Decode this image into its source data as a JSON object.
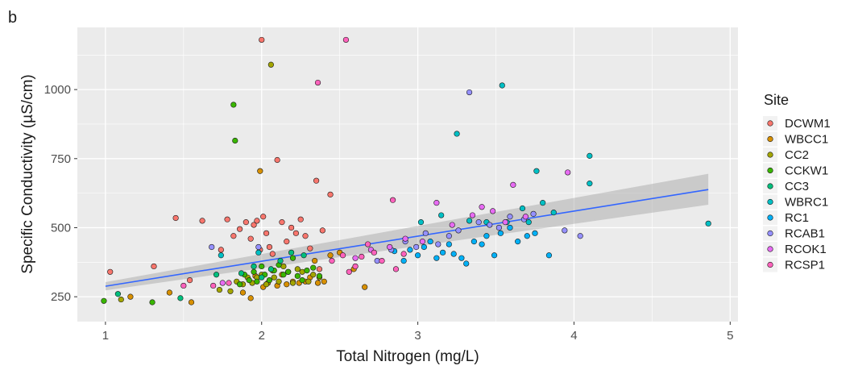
{
  "panel_tag": "b",
  "chart_data": {
    "type": "scatter",
    "title": "",
    "xlabel": "Total Nitrogen (mg/L)",
    "ylabel": "Specific Conductivity (µS/cm)",
    "xlim": [
      0.82,
      5.05
    ],
    "ylim": [
      160,
      1225
    ],
    "x_ticks": [
      1,
      2,
      3,
      4,
      5
    ],
    "y_ticks": [
      250,
      500,
      750,
      1000
    ],
    "x_tick_labels": [
      "1",
      "2",
      "3",
      "4",
      "5"
    ],
    "y_tick_labels": [
      "250",
      "500",
      "750",
      "1000"
    ],
    "grid": true,
    "legend": {
      "title": "Site",
      "placement": "right",
      "entries": [
        "DCWM1",
        "WBCC1",
        "CC2",
        "CCKW1",
        "CC3",
        "WBRC1",
        "RC1",
        "RCAB1",
        "RCOK1",
        "RCSP1"
      ]
    },
    "colors": {
      "DCWM1": "#F8766D",
      "WBCC1": "#D89000",
      "CC2": "#A3A500",
      "CCKW1": "#39B600",
      "CC3": "#00BF7D",
      "WBRC1": "#00BFC4",
      "RC1": "#00B0F6",
      "RCAB1": "#9590FF",
      "RCOK1": "#E76BF3",
      "RCSP1": "#FF62BC",
      "trend_line": "#3366FF",
      "panel_bg": "#EBEBEB"
    },
    "trend": {
      "x0": 1.0,
      "y0": 288,
      "x1": 4.86,
      "y1": 638,
      "ci_start": [
        273,
        303
      ],
      "ci_end": [
        583,
        695
      ]
    },
    "series": [
      {
        "name": "DCWM1",
        "points": [
          [
            1.03,
            340
          ],
          [
            1.31,
            360
          ],
          [
            1.45,
            535
          ],
          [
            1.54,
            310
          ],
          [
            1.62,
            525
          ],
          [
            1.74,
            420
          ],
          [
            1.78,
            530
          ],
          [
            1.82,
            470
          ],
          [
            1.86,
            495
          ],
          [
            1.9,
            520
          ],
          [
            1.93,
            460
          ],
          [
            1.95,
            510
          ],
          [
            1.97,
            525
          ],
          [
            1.99,
            420
          ],
          [
            2.0,
            1180
          ],
          [
            2.01,
            540
          ],
          [
            2.03,
            480
          ],
          [
            2.05,
            430
          ],
          [
            2.07,
            405
          ],
          [
            2.1,
            745
          ],
          [
            2.13,
            520
          ],
          [
            2.16,
            450
          ],
          [
            2.19,
            500
          ],
          [
            2.22,
            480
          ],
          [
            2.25,
            530
          ],
          [
            2.28,
            470
          ],
          [
            2.31,
            425
          ],
          [
            2.35,
            670
          ],
          [
            2.37,
            350
          ],
          [
            2.39,
            490
          ],
          [
            2.44,
            620
          ]
        ]
      },
      {
        "name": "WBCC1",
        "points": [
          [
            1.16,
            250
          ],
          [
            1.41,
            265
          ],
          [
            1.55,
            230
          ],
          [
            1.88,
            265
          ],
          [
            1.93,
            245
          ],
          [
            1.96,
            325
          ],
          [
            1.99,
            705
          ],
          [
            2.01,
            285
          ],
          [
            2.04,
            300
          ],
          [
            2.07,
            345
          ],
          [
            2.1,
            290
          ],
          [
            2.13,
            330
          ],
          [
            2.16,
            295
          ],
          [
            2.2,
            305
          ],
          [
            2.24,
            300
          ],
          [
            2.28,
            305
          ],
          [
            2.31,
            320
          ],
          [
            2.34,
            380
          ],
          [
            2.36,
            300
          ],
          [
            2.4,
            305
          ],
          [
            2.44,
            400
          ],
          [
            2.5,
            410
          ],
          [
            2.59,
            350
          ],
          [
            2.66,
            285
          ]
        ]
      },
      {
        "name": "CC2",
        "points": [
          [
            1.1,
            240
          ],
          [
            1.73,
            275
          ],
          [
            1.8,
            270
          ],
          [
            1.84,
            305
          ],
          [
            1.88,
            295
          ],
          [
            1.91,
            320
          ],
          [
            1.94,
            300
          ],
          [
            1.97,
            320
          ],
          [
            2.0,
            330
          ],
          [
            2.03,
            295
          ],
          [
            2.06,
            1090
          ],
          [
            2.08,
            320
          ],
          [
            2.11,
            305
          ],
          [
            2.14,
            360
          ],
          [
            2.17,
            340
          ],
          [
            2.2,
            300
          ],
          [
            2.23,
            350
          ],
          [
            2.26,
            340
          ],
          [
            2.3,
            305
          ],
          [
            2.33,
            330
          ],
          [
            2.37,
            320
          ]
        ]
      },
      {
        "name": "CCKW1",
        "points": [
          [
            0.99,
            235
          ],
          [
            1.3,
            230
          ],
          [
            1.82,
            945
          ],
          [
            1.83,
            815
          ],
          [
            1.86,
            295
          ],
          [
            1.89,
            330
          ],
          [
            1.92,
            310
          ],
          [
            1.95,
            340
          ],
          [
            1.97,
            305
          ],
          [
            2.0,
            360
          ],
          [
            2.02,
            330
          ],
          [
            2.05,
            310
          ],
          [
            2.08,
            345
          ],
          [
            2.11,
            365
          ],
          [
            2.14,
            330
          ],
          [
            2.17,
            340
          ],
          [
            2.2,
            390
          ],
          [
            2.23,
            325
          ],
          [
            2.26,
            310
          ],
          [
            2.29,
            345
          ],
          [
            2.33,
            355
          ],
          [
            2.37,
            325
          ]
        ]
      },
      {
        "name": "CC3",
        "points": [
          [
            1.08,
            260
          ],
          [
            1.48,
            245
          ],
          [
            1.71,
            330
          ],
          [
            1.87,
            335
          ],
          [
            1.95,
            360
          ],
          [
            2.0,
            320
          ],
          [
            2.06,
            350
          ],
          [
            2.12,
            380
          ],
          [
            2.19,
            410
          ],
          [
            2.27,
            400
          ]
        ]
      },
      {
        "name": "WBRC1",
        "points": [
          [
            1.74,
            400
          ],
          [
            1.98,
            410
          ],
          [
            3.02,
            520
          ],
          [
            3.15,
            545
          ],
          [
            3.25,
            840
          ],
          [
            3.33,
            525
          ],
          [
            3.44,
            520
          ],
          [
            3.54,
            1015
          ],
          [
            3.57,
            520
          ],
          [
            3.67,
            570
          ],
          [
            3.71,
            520
          ],
          [
            3.76,
            705
          ],
          [
            3.8,
            590
          ],
          [
            3.87,
            555
          ],
          [
            4.1,
            760
          ],
          [
            4.1,
            660
          ],
          [
            4.86,
            515
          ]
        ]
      },
      {
        "name": "RC1",
        "points": [
          [
            2.85,
            415
          ],
          [
            2.91,
            380
          ],
          [
            2.95,
            420
          ],
          [
            3.0,
            400
          ],
          [
            3.04,
            430
          ],
          [
            3.08,
            450
          ],
          [
            3.12,
            390
          ],
          [
            3.16,
            410
          ],
          [
            3.2,
            440
          ],
          [
            3.23,
            405
          ],
          [
            3.28,
            390
          ],
          [
            3.31,
            370
          ],
          [
            3.36,
            450
          ],
          [
            3.41,
            440
          ],
          [
            3.44,
            470
          ],
          [
            3.49,
            400
          ],
          [
            3.53,
            480
          ],
          [
            3.59,
            500
          ],
          [
            3.64,
            450
          ],
          [
            3.7,
            470
          ],
          [
            3.75,
            480
          ],
          [
            3.84,
            400
          ]
        ]
      },
      {
        "name": "RCAB1",
        "points": [
          [
            1.68,
            430
          ],
          [
            1.98,
            430
          ],
          [
            2.74,
            380
          ],
          [
            2.83,
            420
          ],
          [
            2.92,
            450
          ],
          [
            2.99,
            430
          ],
          [
            3.05,
            480
          ],
          [
            3.13,
            440
          ],
          [
            3.2,
            470
          ],
          [
            3.26,
            490
          ],
          [
            3.33,
            990
          ],
          [
            3.39,
            520
          ],
          [
            3.46,
            510
          ],
          [
            3.52,
            500
          ],
          [
            3.59,
            540
          ],
          [
            3.68,
            530
          ],
          [
            3.74,
            550
          ],
          [
            3.94,
            490
          ],
          [
            4.04,
            470
          ]
        ]
      },
      {
        "name": "RCOK1",
        "points": [
          [
            1.75,
            300
          ],
          [
            2.6,
            390
          ],
          [
            2.7,
            420
          ],
          [
            2.82,
            430
          ],
          [
            2.92,
            460
          ],
          [
            3.03,
            450
          ],
          [
            3.12,
            590
          ],
          [
            3.22,
            510
          ],
          [
            3.35,
            545
          ],
          [
            3.41,
            575
          ],
          [
            3.48,
            560
          ],
          [
            3.56,
            520
          ],
          [
            3.61,
            655
          ],
          [
            3.69,
            540
          ],
          [
            3.96,
            700
          ]
        ]
      },
      {
        "name": "RCSP1",
        "points": [
          [
            1.5,
            290
          ],
          [
            1.69,
            290
          ],
          [
            1.79,
            300
          ],
          [
            2.36,
            1025
          ],
          [
            2.45,
            380
          ],
          [
            2.52,
            400
          ],
          [
            2.54,
            1180
          ],
          [
            2.56,
            340
          ],
          [
            2.6,
            360
          ],
          [
            2.64,
            395
          ],
          [
            2.68,
            440
          ],
          [
            2.72,
            410
          ],
          [
            2.77,
            380
          ],
          [
            2.84,
            600
          ],
          [
            2.86,
            350
          ],
          [
            2.91,
            405
          ]
        ]
      }
    ]
  }
}
